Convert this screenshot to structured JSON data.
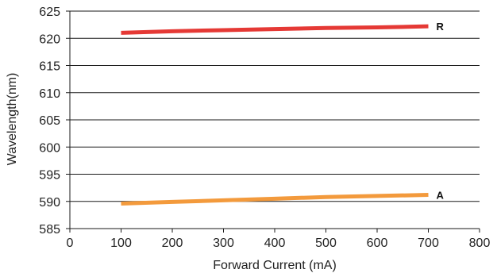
{
  "chart_data": {
    "type": "line",
    "title": "",
    "xlabel": "Forward Current (mA)",
    "ylabel": "Wavelength(nm)",
    "xlim": [
      0,
      800
    ],
    "ylim": [
      585,
      625
    ],
    "x_ticks": [
      0,
      100,
      200,
      300,
      400,
      500,
      600,
      700,
      800
    ],
    "y_ticks": [
      585,
      590,
      595,
      600,
      605,
      610,
      615,
      620,
      625
    ],
    "grid": "horizontal",
    "legend": "none",
    "series": [
      {
        "name": "R",
        "color": "#e53935",
        "x": [
          100,
          200,
          300,
          400,
          500,
          600,
          700
        ],
        "values": [
          621.0,
          621.3,
          621.5,
          621.7,
          621.9,
          622.0,
          622.2
        ]
      },
      {
        "name": "A",
        "color": "#f39a3c",
        "x": [
          100,
          200,
          300,
          400,
          500,
          600,
          700
        ],
        "values": [
          589.6,
          589.9,
          590.2,
          590.5,
          590.8,
          591.0,
          591.2
        ]
      }
    ]
  }
}
